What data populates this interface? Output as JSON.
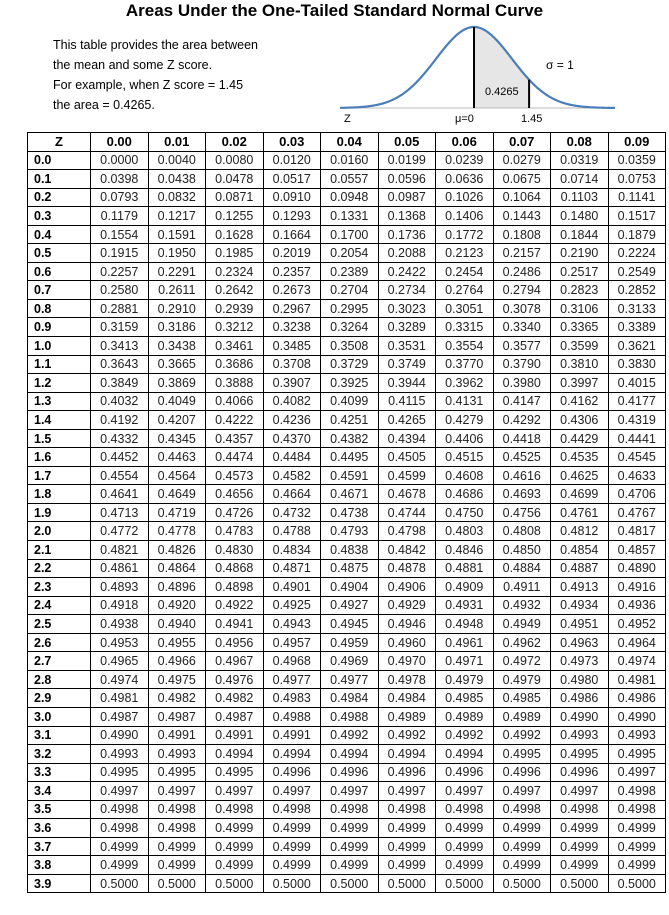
{
  "title": "Areas Under the One-Tailed Standard Normal Curve",
  "intro": [
    "This table provides the area between",
    "the mean and some Z score.",
    "For example, when Z score = 1.45",
    "the area = 0.4265."
  ],
  "figure": {
    "area_label": "0.4265",
    "sigma_label": "σ = 1",
    "axis_label": "Z",
    "mean_label": "μ=0",
    "z_label": "1.45",
    "z_value": 1.45,
    "curve_color": "#4a7ebb",
    "shade_color": "#e6e6e6"
  },
  "table": {
    "headers": [
      "Z",
      "0.00",
      "0.01",
      "0.02",
      "0.03",
      "0.04",
      "0.05",
      "0.06",
      "0.07",
      "0.08",
      "0.09"
    ],
    "rows": [
      [
        "0.0",
        "0.0000",
        "0.0040",
        "0.0080",
        "0.0120",
        "0.0160",
        "0.0199",
        "0.0239",
        "0.0279",
        "0.0319",
        "0.0359"
      ],
      [
        "0.1",
        "0.0398",
        "0.0438",
        "0.0478",
        "0.0517",
        "0.0557",
        "0.0596",
        "0.0636",
        "0.0675",
        "0.0714",
        "0.0753"
      ],
      [
        "0.2",
        "0.0793",
        "0.0832",
        "0.0871",
        "0.0910",
        "0.0948",
        "0.0987",
        "0.1026",
        "0.1064",
        "0.1103",
        "0.1141"
      ],
      [
        "0.3",
        "0.1179",
        "0.1217",
        "0.1255",
        "0.1293",
        "0.1331",
        "0.1368",
        "0.1406",
        "0.1443",
        "0.1480",
        "0.1517"
      ],
      [
        "0.4",
        "0.1554",
        "0.1591",
        "0.1628",
        "0.1664",
        "0.1700",
        "0.1736",
        "0.1772",
        "0.1808",
        "0.1844",
        "0.1879"
      ],
      [
        "0.5",
        "0.1915",
        "0.1950",
        "0.1985",
        "0.2019",
        "0.2054",
        "0.2088",
        "0.2123",
        "0.2157",
        "0.2190",
        "0.2224"
      ],
      [
        "0.6",
        "0.2257",
        "0.2291",
        "0.2324",
        "0.2357",
        "0.2389",
        "0.2422",
        "0.2454",
        "0.2486",
        "0.2517",
        "0.2549"
      ],
      [
        "0.7",
        "0.2580",
        "0.2611",
        "0.2642",
        "0.2673",
        "0.2704",
        "0.2734",
        "0.2764",
        "0.2794",
        "0.2823",
        "0.2852"
      ],
      [
        "0.8",
        "0.2881",
        "0.2910",
        "0.2939",
        "0.2967",
        "0.2995",
        "0.3023",
        "0.3051",
        "0.3078",
        "0.3106",
        "0.3133"
      ],
      [
        "0.9",
        "0.3159",
        "0.3186",
        "0.3212",
        "0.3238",
        "0.3264",
        "0.3289",
        "0.3315",
        "0.3340",
        "0.3365",
        "0.3389"
      ],
      [
        "1.0",
        "0.3413",
        "0.3438",
        "0.3461",
        "0.3485",
        "0.3508",
        "0.3531",
        "0.3554",
        "0.3577",
        "0.3599",
        "0.3621"
      ],
      [
        "1.1",
        "0.3643",
        "0.3665",
        "0.3686",
        "0.3708",
        "0.3729",
        "0.3749",
        "0.3770",
        "0.3790",
        "0.3810",
        "0.3830"
      ],
      [
        "1.2",
        "0.3849",
        "0.3869",
        "0.3888",
        "0.3907",
        "0.3925",
        "0.3944",
        "0.3962",
        "0.3980",
        "0.3997",
        "0.4015"
      ],
      [
        "1.3",
        "0.4032",
        "0.4049",
        "0.4066",
        "0.4082",
        "0.4099",
        "0.4115",
        "0.4131",
        "0.4147",
        "0.4162",
        "0.4177"
      ],
      [
        "1.4",
        "0.4192",
        "0.4207",
        "0.4222",
        "0.4236",
        "0.4251",
        "0.4265",
        "0.4279",
        "0.4292",
        "0.4306",
        "0.4319"
      ],
      [
        "1.5",
        "0.4332",
        "0.4345",
        "0.4357",
        "0.4370",
        "0.4382",
        "0.4394",
        "0.4406",
        "0.4418",
        "0.4429",
        "0.4441"
      ],
      [
        "1.6",
        "0.4452",
        "0.4463",
        "0.4474",
        "0.4484",
        "0.4495",
        "0.4505",
        "0.4515",
        "0.4525",
        "0.4535",
        "0.4545"
      ],
      [
        "1.7",
        "0.4554",
        "0.4564",
        "0.4573",
        "0.4582",
        "0.4591",
        "0.4599",
        "0.4608",
        "0.4616",
        "0.4625",
        "0.4633"
      ],
      [
        "1.8",
        "0.4641",
        "0.4649",
        "0.4656",
        "0.4664",
        "0.4671",
        "0.4678",
        "0.4686",
        "0.4693",
        "0.4699",
        "0.4706"
      ],
      [
        "1.9",
        "0.4713",
        "0.4719",
        "0.4726",
        "0.4732",
        "0.4738",
        "0.4744",
        "0.4750",
        "0.4756",
        "0.4761",
        "0.4767"
      ],
      [
        "2.0",
        "0.4772",
        "0.4778",
        "0.4783",
        "0.4788",
        "0.4793",
        "0.4798",
        "0.4803",
        "0.4808",
        "0.4812",
        "0.4817"
      ],
      [
        "2.1",
        "0.4821",
        "0.4826",
        "0.4830",
        "0.4834",
        "0.4838",
        "0.4842",
        "0.4846",
        "0.4850",
        "0.4854",
        "0.4857"
      ],
      [
        "2.2",
        "0.4861",
        "0.4864",
        "0.4868",
        "0.4871",
        "0.4875",
        "0.4878",
        "0.4881",
        "0.4884",
        "0.4887",
        "0.4890"
      ],
      [
        "2.3",
        "0.4893",
        "0.4896",
        "0.4898",
        "0.4901",
        "0.4904",
        "0.4906",
        "0.4909",
        "0.4911",
        "0.4913",
        "0.4916"
      ],
      [
        "2.4",
        "0.4918",
        "0.4920",
        "0.4922",
        "0.4925",
        "0.4927",
        "0.4929",
        "0.4931",
        "0.4932",
        "0.4934",
        "0.4936"
      ],
      [
        "2.5",
        "0.4938",
        "0.4940",
        "0.4941",
        "0.4943",
        "0.4945",
        "0.4946",
        "0.4948",
        "0.4949",
        "0.4951",
        "0.4952"
      ],
      [
        "2.6",
        "0.4953",
        "0.4955",
        "0.4956",
        "0.4957",
        "0.4959",
        "0.4960",
        "0.4961",
        "0.4962",
        "0.4963",
        "0.4964"
      ],
      [
        "2.7",
        "0.4965",
        "0.4966",
        "0.4967",
        "0.4968",
        "0.4969",
        "0.4970",
        "0.4971",
        "0.4972",
        "0.4973",
        "0.4974"
      ],
      [
        "2.8",
        "0.4974",
        "0.4975",
        "0.4976",
        "0.4977",
        "0.4977",
        "0.4978",
        "0.4979",
        "0.4979",
        "0.4980",
        "0.4981"
      ],
      [
        "2.9",
        "0.4981",
        "0.4982",
        "0.4982",
        "0.4983",
        "0.4984",
        "0.4984",
        "0.4985",
        "0.4985",
        "0.4986",
        "0.4986"
      ],
      [
        "3.0",
        "0.4987",
        "0.4987",
        "0.4987",
        "0.4988",
        "0.4988",
        "0.4989",
        "0.4989",
        "0.4989",
        "0.4990",
        "0.4990"
      ],
      [
        "3.1",
        "0.4990",
        "0.4991",
        "0.4991",
        "0.4991",
        "0.4992",
        "0.4992",
        "0.4992",
        "0.4992",
        "0.4993",
        "0.4993"
      ],
      [
        "3.2",
        "0.4993",
        "0.4993",
        "0.4994",
        "0.4994",
        "0.4994",
        "0.4994",
        "0.4994",
        "0.4995",
        "0.4995",
        "0.4995"
      ],
      [
        "3.3",
        "0.4995",
        "0.4995",
        "0.4995",
        "0.4996",
        "0.4996",
        "0.4996",
        "0.4996",
        "0.4996",
        "0.4996",
        "0.4997"
      ],
      [
        "3.4",
        "0.4997",
        "0.4997",
        "0.4997",
        "0.4997",
        "0.4997",
        "0.4997",
        "0.4997",
        "0.4997",
        "0.4997",
        "0.4998"
      ],
      [
        "3.5",
        "0.4998",
        "0.4998",
        "0.4998",
        "0.4998",
        "0.4998",
        "0.4998",
        "0.4998",
        "0.4998",
        "0.4998",
        "0.4998"
      ],
      [
        "3.6",
        "0.4998",
        "0.4998",
        "0.4999",
        "0.4999",
        "0.4999",
        "0.4999",
        "0.4999",
        "0.4999",
        "0.4999",
        "0.4999"
      ],
      [
        "3.7",
        "0.4999",
        "0.4999",
        "0.4999",
        "0.4999",
        "0.4999",
        "0.4999",
        "0.4999",
        "0.4999",
        "0.4999",
        "0.4999"
      ],
      [
        "3.8",
        "0.4999",
        "0.4999",
        "0.4999",
        "0.4999",
        "0.4999",
        "0.4999",
        "0.4999",
        "0.4999",
        "0.4999",
        "0.4999"
      ],
      [
        "3.9",
        "0.5000",
        "0.5000",
        "0.5000",
        "0.5000",
        "0.5000",
        "0.5000",
        "0.5000",
        "0.5000",
        "0.5000",
        "0.5000"
      ]
    ]
  }
}
